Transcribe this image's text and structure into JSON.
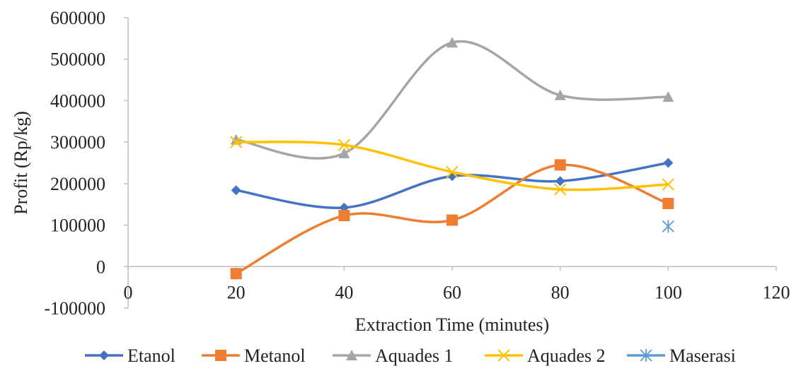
{
  "chart_data": {
    "type": "line",
    "title": "",
    "xlabel": "Extraction Time (minutes)",
    "ylabel": "Profit (Rp/kg)",
    "xlim": [
      0,
      120
    ],
    "ylim": [
      -100000,
      600000
    ],
    "x_ticks": [
      0,
      20,
      40,
      60,
      80,
      100,
      120
    ],
    "y_ticks": [
      -100000,
      0,
      100000,
      200000,
      300000,
      400000,
      500000,
      600000
    ],
    "gridlines": false,
    "smooth": true,
    "legend_position": "bottom",
    "series": [
      {
        "name": "Etanol",
        "color": "#4472C4",
        "marker": "diamond",
        "x": [
          20,
          40,
          60,
          80,
          100
        ],
        "values": [
          184000,
          142000,
          218000,
          206000,
          250000
        ]
      },
      {
        "name": "Metanol",
        "color": "#ED7D31",
        "marker": "square",
        "x": [
          20,
          40,
          60,
          80,
          100
        ],
        "values": [
          -17000,
          123000,
          112000,
          245000,
          152000
        ]
      },
      {
        "name": "Aquades 1",
        "color": "#A5A5A5",
        "marker": "triangle",
        "x": [
          20,
          40,
          60,
          80,
          100
        ],
        "values": [
          306000,
          273000,
          540000,
          413000,
          409000
        ]
      },
      {
        "name": "Aquades 2",
        "color": "#FFC000",
        "marker": "x",
        "x": [
          20,
          40,
          60,
          80,
          100
        ],
        "values": [
          300000,
          293000,
          228000,
          186000,
          198000
        ]
      },
      {
        "name": "Maserasi",
        "color": "#5B9BD5",
        "marker": "asterisk",
        "x": [
          100
        ],
        "values": [
          97000
        ]
      }
    ]
  }
}
